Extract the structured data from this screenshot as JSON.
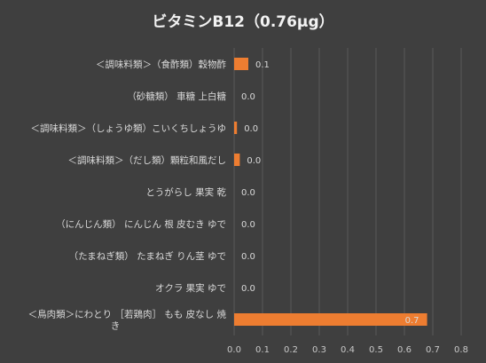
{
  "colors": {
    "background": "#3f3f3f",
    "bar": "#ed7d31",
    "gridline": "#595959",
    "text": "#d9d9d9",
    "title": "#f2f2f2"
  },
  "chart_data": {
    "type": "bar",
    "orientation": "horizontal",
    "title": "ビタミンB12（0.76μg）",
    "xlabel": "",
    "ylabel": "",
    "xlim": [
      0,
      0.8
    ],
    "xticks": [
      "0.0",
      "0.1",
      "0.2",
      "0.3",
      "0.4",
      "0.5",
      "0.6",
      "0.7",
      "0.8"
    ],
    "grid": true,
    "legend": "none",
    "categories": [
      "＜調味料類＞（食酢類）穀物酢",
      "（砂糖類） 車糖 上白糖",
      "＜調味料類＞（しょうゆ類）こいくちしょうゆ",
      "＜調味料類＞（だし類）顆粒和風だし",
      "とうがらし 果実 乾",
      "（にんじん類） にんじん 根 皮むき ゆで",
      "（たまねぎ類） たまねぎ りん茎 ゆで",
      "オクラ 果実 ゆで",
      "＜鳥肉類＞にわとり ［若鶏肉］ もも 皮なし 焼き"
    ],
    "category_lines": [
      [
        "＜調味料類＞（食酢類）穀物酢"
      ],
      [
        "（砂糖類） 車糖 上白糖"
      ],
      [
        "＜調味料類＞（しょうゆ類）こいくちしょうゆ"
      ],
      [
        "＜調味料類＞（だし類）顆粒和風だし"
      ],
      [
        "とうがらし 果実 乾"
      ],
      [
        "（にんじん類） にんじん 根 皮むき ゆで"
      ],
      [
        "（たまねぎ類） たまねぎ りん茎 ゆで"
      ],
      [
        "オクラ 果実 ゆで"
      ],
      [
        "＜鳥肉類＞にわとり ［若鶏肉］ もも 皮なし 焼",
        "き"
      ]
    ],
    "values": [
      0.05,
      0.0,
      0.01,
      0.02,
      0.0,
      0.0,
      0.0,
      0.0,
      0.68
    ],
    "value_labels": [
      "0.1",
      "0.0",
      "0.0",
      "0.0",
      "0.0",
      "0.0",
      "0.0",
      "0.0",
      "0.7"
    ]
  }
}
